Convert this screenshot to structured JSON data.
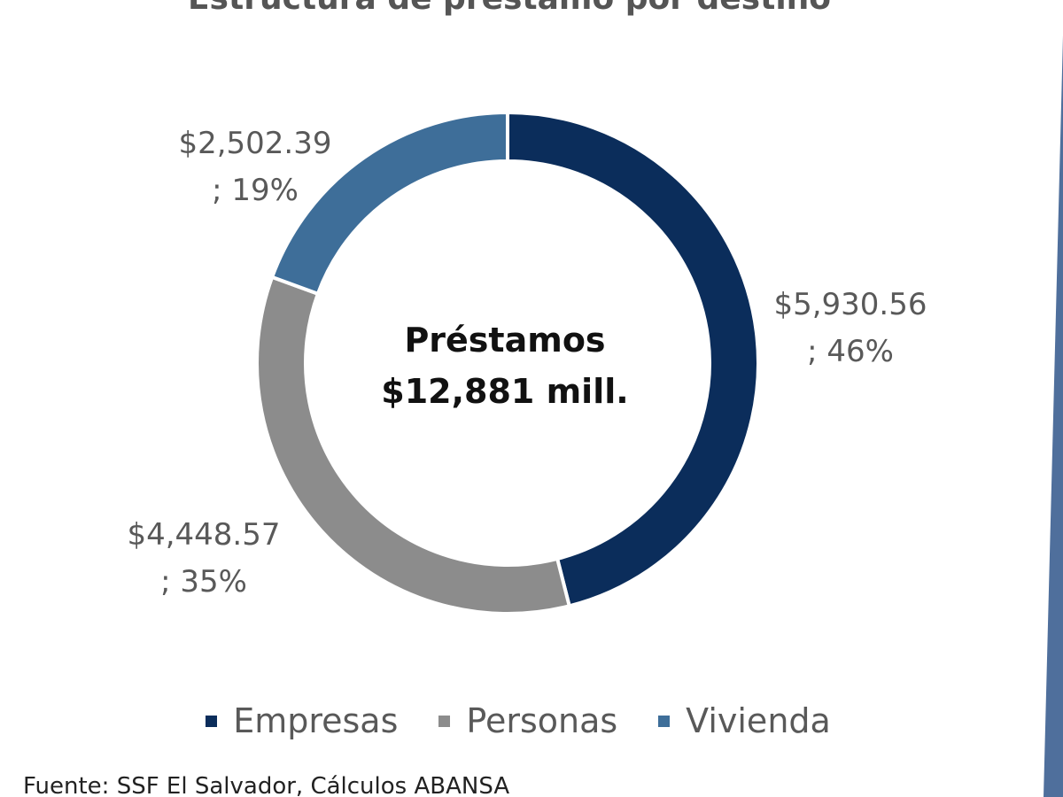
{
  "colors": {
    "empresas": "#0b2d5b",
    "personas": "#8c8c8c",
    "vivienda": "#3e6e99",
    "side_band": "#4f6f9c"
  },
  "source": "Fuente: SSF El Salvador, Cálculos ABANSA",
  "chart_data": {
    "type": "pie",
    "title": "Estructura de préstamo por destino",
    "center_label_line1": "Préstamos",
    "center_label_line2": "$12,881 mill.",
    "legend_position": "bottom",
    "categories": [
      "Empresas",
      "Personas",
      "Vivienda"
    ],
    "values": [
      5930.56,
      4448.57,
      2502.39
    ],
    "percentages": [
      46,
      35,
      19
    ],
    "labels": [
      {
        "line1": "$5,930.56",
        "line2": "; 46%"
      },
      {
        "line1": "$4,448.57",
        "line2": "; 35%"
      },
      {
        "line1": "$2,502.39",
        "line2": "; 19%"
      }
    ]
  }
}
